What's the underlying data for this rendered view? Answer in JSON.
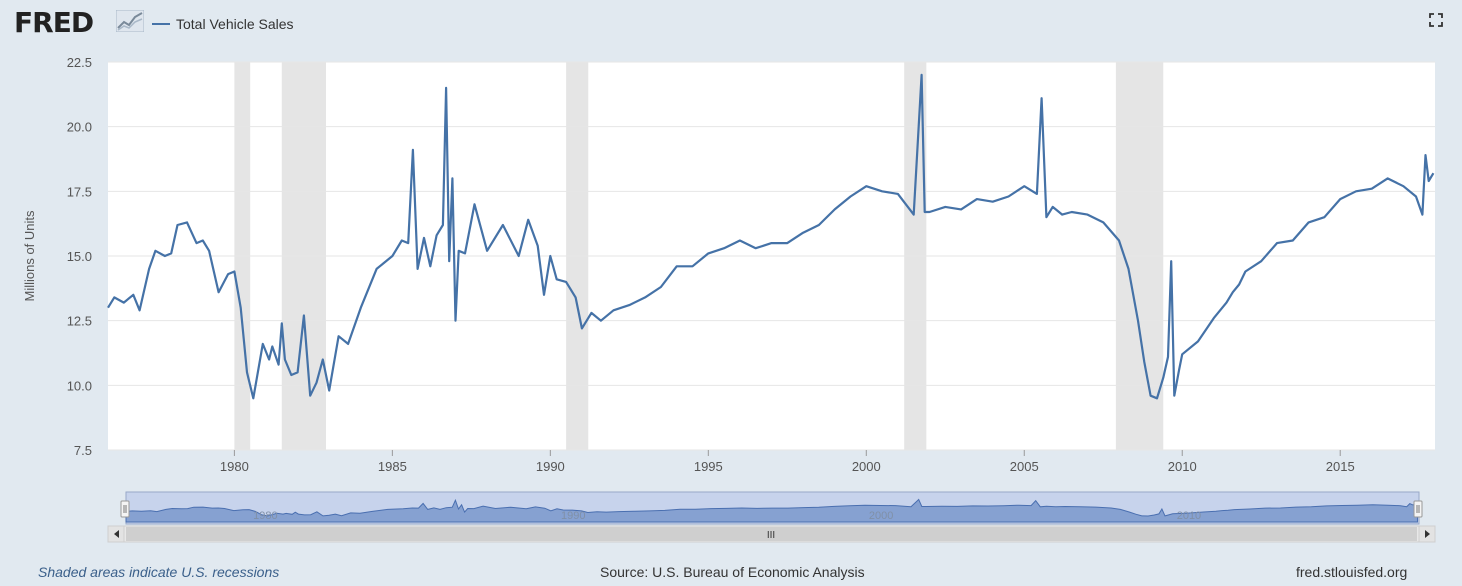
{
  "brand": {
    "logo_text": "FRED"
  },
  "legend": {
    "label": "Total Vehicle Sales",
    "color": "#4572a7"
  },
  "footer": {
    "recession_note": "Shaded areas indicate U.S. recessions",
    "source": "Source: U.S. Bureau of Economic Analysis",
    "site": "fred.stlouisfed.org"
  },
  "navigator": {
    "grip_label": "III",
    "labels": [
      "1980",
      "1990",
      "2000",
      "2010"
    ]
  },
  "chart_data": {
    "type": "line",
    "title": "",
    "xlabel": "",
    "ylabel": "Millions of Units",
    "ylim": [
      7.5,
      22.5
    ],
    "xlim": [
      1976,
      2018
    ],
    "yticks": [
      7.5,
      10.0,
      12.5,
      15.0,
      17.5,
      20.0,
      22.5
    ],
    "ytick_labels": [
      "7.5",
      "10.0",
      "12.5",
      "15.0",
      "17.5",
      "20.0",
      "22.5"
    ],
    "xticks": [
      1980,
      1985,
      1990,
      1995,
      2000,
      2005,
      2010,
      2015
    ],
    "xtick_labels": [
      "1980",
      "1985",
      "1990",
      "1995",
      "2000",
      "2005",
      "2010",
      "2015"
    ],
    "grid": "horizontal",
    "recessions": [
      [
        1980.0,
        1980.5
      ],
      [
        1981.5,
        1982.9
      ],
      [
        1990.5,
        1991.2
      ],
      [
        2001.2,
        2001.9
      ],
      [
        2007.9,
        2009.4
      ]
    ],
    "series": [
      {
        "name": "Total Vehicle Sales",
        "color": "#4572a7",
        "x": [
          1976.0,
          1976.2,
          1976.5,
          1976.8,
          1977.0,
          1977.3,
          1977.5,
          1977.8,
          1978.0,
          1978.2,
          1978.5,
          1978.8,
          1979.0,
          1979.2,
          1979.5,
          1979.8,
          1980.0,
          1980.2,
          1980.4,
          1980.6,
          1980.9,
          1981.1,
          1981.2,
          1981.4,
          1981.5,
          1981.6,
          1981.8,
          1982.0,
          1982.2,
          1982.4,
          1982.6,
          1982.8,
          1983.0,
          1983.3,
          1983.6,
          1984.0,
          1984.5,
          1985.0,
          1985.3,
          1985.5,
          1985.65,
          1985.8,
          1986.0,
          1986.2,
          1986.4,
          1986.6,
          1986.7,
          1986.8,
          1986.9,
          1987.0,
          1987.1,
          1987.3,
          1987.6,
          1988.0,
          1988.5,
          1989.0,
          1989.3,
          1989.6,
          1989.8,
          1990.0,
          1990.2,
          1990.5,
          1990.8,
          1991.0,
          1991.3,
          1991.6,
          1992.0,
          1992.5,
          1993.0,
          1993.5,
          1994.0,
          1994.5,
          1995.0,
          1995.5,
          1996.0,
          1996.5,
          1997.0,
          1997.5,
          1998.0,
          1998.5,
          1999.0,
          1999.5,
          2000.0,
          2000.5,
          2001.0,
          2001.5,
          2001.75,
          2001.85,
          2002.0,
          2002.5,
          2003.0,
          2003.5,
          2004.0,
          2004.5,
          2005.0,
          2005.4,
          2005.55,
          2005.7,
          2005.9,
          2006.2,
          2006.5,
          2007.0,
          2007.5,
          2008.0,
          2008.3,
          2008.6,
          2008.8,
          2009.0,
          2009.2,
          2009.4,
          2009.55,
          2009.65,
          2009.75,
          2009.9,
          2010.0,
          2010.5,
          2011.0,
          2011.4,
          2011.6,
          2011.8,
          2012.0,
          2012.5,
          2013.0,
          2013.5,
          2014.0,
          2014.5,
          2015.0,
          2015.5,
          2016.0,
          2016.5,
          2017.0,
          2017.4,
          2017.6,
          2017.7,
          2017.8,
          2017.95
        ],
        "values": [
          13.0,
          13.4,
          13.2,
          13.5,
          12.9,
          14.5,
          15.2,
          15.0,
          15.1,
          16.2,
          16.3,
          15.5,
          15.6,
          15.2,
          13.6,
          14.3,
          14.4,
          13.0,
          10.5,
          9.5,
          11.6,
          11.0,
          11.5,
          10.8,
          12.4,
          11.0,
          10.4,
          10.5,
          12.7,
          9.6,
          10.1,
          11.0,
          9.8,
          11.9,
          11.6,
          13.0,
          14.5,
          15.0,
          15.6,
          15.5,
          19.1,
          14.5,
          15.7,
          14.6,
          15.8,
          16.2,
          21.5,
          14.8,
          18.0,
          12.5,
          15.2,
          15.1,
          17.0,
          15.2,
          16.2,
          15.0,
          16.4,
          15.4,
          13.5,
          15.0,
          14.1,
          14.0,
          13.4,
          12.2,
          12.8,
          12.5,
          12.9,
          13.1,
          13.4,
          13.8,
          14.6,
          14.6,
          15.1,
          15.3,
          15.6,
          15.3,
          15.5,
          15.5,
          15.9,
          16.2,
          16.8,
          17.3,
          17.7,
          17.5,
          17.4,
          16.6,
          22.0,
          16.7,
          16.7,
          16.9,
          16.8,
          17.2,
          17.1,
          17.3,
          17.7,
          17.4,
          21.1,
          16.5,
          16.9,
          16.6,
          16.7,
          16.6,
          16.3,
          15.6,
          14.5,
          12.5,
          10.9,
          9.6,
          9.5,
          10.3,
          11.1,
          14.8,
          9.6,
          10.6,
          11.2,
          11.7,
          12.6,
          13.2,
          13.6,
          13.9,
          14.4,
          14.8,
          15.5,
          15.6,
          16.3,
          16.5,
          17.2,
          17.5,
          17.6,
          18.0,
          17.7,
          17.3,
          16.6,
          18.9,
          17.9,
          18.2
        ]
      }
    ]
  }
}
